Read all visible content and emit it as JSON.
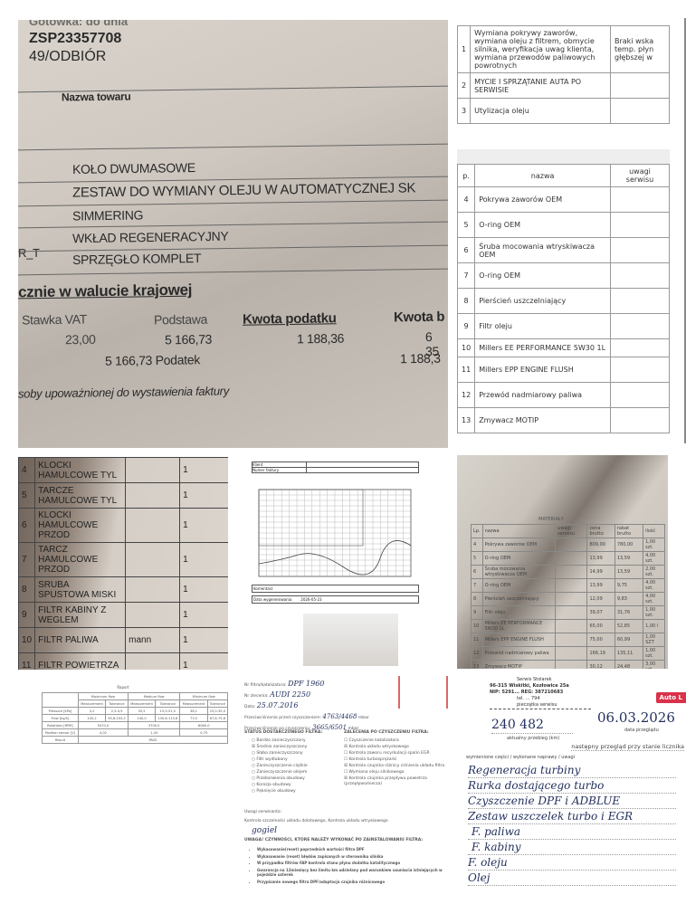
{
  "invoice_photo": {
    "header_top": "Gotówka: do dnia",
    "doc_number": "ZSP23357708",
    "doc_code": "49/ODBIÓR",
    "column_name": "Nazwa towaru",
    "items": [
      "KOŁO DWUMASOWE",
      "ZESTAW DO WYMIANY OLEJU W AUTOMATYCZNEJ SK",
      "SIMMERING",
      "WKŁAD REGENERACYJNY",
      "SPRZĘGŁO KOMPLET"
    ],
    "side_code": "R_T",
    "section": "cznie w walucie krajowej",
    "headers": [
      "Stawka VAT",
      "Podstawa",
      "Kwota podatku",
      "Kwota b"
    ],
    "row": [
      "23,00",
      "5 166,73",
      "1 188,36",
      "6 35"
    ],
    "sum_row": "5 166,73 Podatek",
    "sum_tax": "1 188,3",
    "signature_label": "soby upoważnionej do wystawienia faktury"
  },
  "service_doc": {
    "services": [
      {
        "nr": "1",
        "name": "Wymiana pokrywy zaworów, wymiana oleju z filtrem, obmycie silnika, weryfikacja uwag klienta, wymiana przewodów paliwowych powrotnych",
        "note": "Braki wska temp. płyn głębszej w"
      },
      {
        "nr": "2",
        "name": "MYCIE I SPRZĄTANIE AUTA PO SERWISIE",
        "note": ""
      },
      {
        "nr": "3",
        "name": "Utylizacja oleju",
        "note": ""
      }
    ],
    "parts_headers": [
      "p.",
      "nazwa",
      "uwagi serwisu"
    ],
    "parts": [
      {
        "nr": "4",
        "name": "Pokrywa zaworów OEM"
      },
      {
        "nr": "5",
        "name": "O-ring OEM"
      },
      {
        "nr": "6",
        "name": "Śruba mocowania wtryskiwacza OEM"
      },
      {
        "nr": "7",
        "name": "O-ring OEM"
      },
      {
        "nr": "8",
        "name": "Pierścień uszczelniający"
      },
      {
        "nr": "9",
        "name": "Filtr oleju"
      },
      {
        "nr": "10",
        "name": "Millers EE PERFORMANCE 5W30 1L"
      },
      {
        "nr": "11",
        "name": "Millers EPP ENGINE FLUSH"
      },
      {
        "nr": "12",
        "name": "Przewód nadmiarowy paliwa"
      },
      {
        "nr": "13",
        "name": "Zmywacz MOTIP"
      }
    ]
  },
  "brake_list": {
    "rows": [
      {
        "nr": "4",
        "name": "KLOCKI HAMULCOWE TYL",
        "brand": "",
        "qty": "1"
      },
      {
        "nr": "5",
        "name": "TARCZE HAMULCOWE TYL",
        "brand": "",
        "qty": "1"
      },
      {
        "nr": "6",
        "name": "KLOCKI HAMULCOWE PRZOD",
        "brand": "",
        "qty": "1"
      },
      {
        "nr": "7",
        "name": "TARCZ HAMULCOWE PRZOD",
        "brand": "",
        "qty": "1"
      },
      {
        "nr": "8",
        "name": "SRUBA SPUSTOWA MISKI",
        "brand": "",
        "qty": "1"
      },
      {
        "nr": "9",
        "name": "FILTR KABINY Z WEGLEM",
        "brand": "",
        "qty": "1"
      },
      {
        "nr": "10",
        "name": "FILTR PALIWA",
        "brand": "mann",
        "qty": "1"
      },
      {
        "nr": "11",
        "name": "FILTR POWIETRZA",
        "brand": "",
        "qty": "1"
      }
    ]
  },
  "graph_doc": {
    "client_label": "Klient",
    "invoice_label": "Numer faktury",
    "comments_label": "Komentarz",
    "date_label": "Data wygenerowania",
    "date_value": "2026-05-23"
  },
  "parts_photo": {
    "title": "MATERIAŁY",
    "headers": [
      "Lp.",
      "nazwa",
      "uwagi serwisu",
      "cena brutto",
      "rabat brutto",
      "ilość"
    ],
    "rows": [
      [
        "4",
        "Pokrywa zaworów OEM",
        "",
        "809,00",
        "780,00",
        "1,00 szt."
      ],
      [
        "5",
        "O-ring OEM",
        "",
        "13,99",
        "13,59",
        "4,00 szt."
      ],
      [
        "6",
        "Śruba mocowania wtryskiwacza OEM",
        "",
        "14,99",
        "13,59",
        "2,00 szt."
      ],
      [
        "7",
        "O-ring OEM",
        "",
        "13,99",
        "9,75",
        "4,00 szt."
      ],
      [
        "8",
        "Pierścień uszczelniający",
        "",
        "12,09",
        "9,83",
        "4,00 szt."
      ],
      [
        "9",
        "Filtr oleju",
        "",
        "39,07",
        "31,76",
        "1,00 szt."
      ],
      [
        "10",
        "Millers EE PERFORMANCE 5W30 1L",
        "",
        "65,00",
        "52,85",
        "1,00 l"
      ],
      [
        "11",
        "Millers EPP ENGINE FLUSH",
        "",
        "75,00",
        "60,99",
        "1,00 SZT"
      ],
      [
        "12",
        "Przewód nadmiarowy paliwa",
        "",
        "166,19",
        "135,11",
        "1,00 szt."
      ],
      [
        "13",
        "Zmywacz MOTIP",
        "",
        "30,12",
        "24,48",
        "3,00 szt."
      ]
    ]
  },
  "injector_report": {
    "title": "Raport",
    "headers": [
      "Maximum flow",
      "Medium flow",
      "Minimum flow"
    ],
    "subheaders": [
      "Measurement",
      "Tolerance"
    ],
    "rows": [
      {
        "label": "Pressure [kPa]",
        "v": [
          "3,2",
          "2,3-4,9",
          "35,2",
          "15,0-51,0",
          "38,1",
          "23,0-39,0"
        ]
      },
      {
        "label": "Flow [kg/h]",
        "v": [
          "100,2",
          "95,8-103,2",
          "140,0",
          "130,8-113,6",
          "73,5",
          "67,8-75,8"
        ]
      },
      {
        "label": "Rotations [RPM]",
        "v": [
          "5470,0",
          "3700,0",
          "8060,0"
        ]
      },
      {
        "label": "Position sensor [V]",
        "v": [
          "4,02",
          "1,43",
          "0,75"
        ]
      },
      {
        "label": "Result",
        "v": [
          "PASS"
        ]
      }
    ]
  },
  "dpf_form": {
    "filter_label": "Nr filtra/katalizatora:",
    "filter_value": "DPF 1960",
    "vehicle_label": "Nr zlecenia:",
    "vehicle_value": "AUDI 2250",
    "date_label": "Data:",
    "date_value": "25.07.2016",
    "before_label": "Przeciwciśnienie przed czyszczeniem:",
    "before_value": "4763/4468",
    "unit": "mbar",
    "after_label": "Przeciwciśnienie po czyszczeniu:",
    "after_value": "3665/6501",
    "status_title": "STATUS DOSTARCZONEGO FILTRA:",
    "status": [
      "Bardzo zanieczyszczony",
      "Średnio zanieczyszczony",
      "Słabo zanieczyszczony",
      "Filtr wydłubany",
      "Zanieczyszczenie ciężkie",
      "Zanieczyszczenie olejem",
      "Przebarwienia obudowy",
      "Korozja obudowy",
      "Pęknięcie obudowy"
    ],
    "recommend_title": "ZALECENIA PO CZYSZCZENIU FILTRA:",
    "recommend": [
      "Czyszczenie katalizatora",
      "Kontrola układu wtryskowego",
      "Kontrola zaworu recyrkulacji spalin EGR",
      "Kontrola turbosprężarki",
      "Kontrola czujnika różnicy ciśnienia układu filtra",
      "Wymiana oleju silnikowego",
      "Kontrola czujnika przepływu powietrza (przepływomierza)"
    ],
    "remarks_label": "Uwagi serwisanta:",
    "remarks": "Kontrola szczelności układu dolotowego, Kontrola układu wtryskowego",
    "signature": "gogiel",
    "warning_title": "UWAGA! CZYNNOŚCI, KTÓRE NALEŻY WYKONAĆ PO ZAINSTALOWANIU FILTRA:",
    "warnings": [
      "Wykasowanie(reset) poprzednich wartości filtra DPF",
      "Wykasowanie (reset) błędów zapisanych w sterowniku silnika",
      "W przypadku filtrów FAP kontrola stanu płynu dodatku katalitycznego",
      "Gwarancja na 12miesięcy bez limitu km udzielany pod warunkiem usunięcia istniejących w pojeździe usterek",
      "Przypisanie nowego filtra DPF/adaptacja czujnika różnicowego"
    ]
  },
  "service_book": {
    "stamp_lines": [
      "Serwis Stolarek",
      "96-315 Wiskitki, Kozłowice 25a",
      "NIP: 5291... REG: 387210683",
      "tel. ... 794",
      "pieczątka serwisu"
    ],
    "badge": "Auto L",
    "badge_color": "#d9324a",
    "date_value": "06.03.2026",
    "date_label": "data przeglądu",
    "mileage_value": "240 482",
    "mileage_label": "aktualny przebieg (km)",
    "next_label": "następny przegląd przy stanie licznika",
    "works_label": "wymienione części / wykonane naprawy / uwagi",
    "works": [
      "Regeneracja turbiny",
      "Rurka dostającego turbo",
      "Czyszczenie DPF i ADBLUE",
      "Zestaw uszczelek turbo i EGR",
      "F. paliwa",
      "F. kabiny",
      "F. oleju",
      "Olej"
    ]
  }
}
